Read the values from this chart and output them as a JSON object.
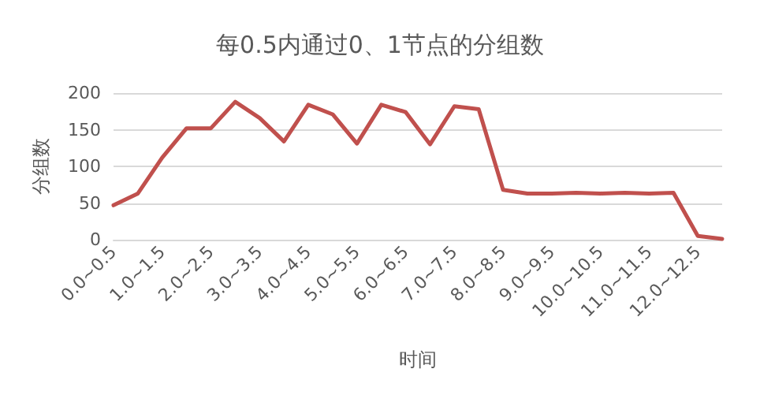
{
  "chart_data": {
    "type": "line",
    "title": "每0.5内通过0、1节点的分组数",
    "xlabel": "时间",
    "ylabel": "分组数",
    "categories": [
      "0.0~0.5",
      null,
      "1.0~1.5",
      null,
      "2.0~2.5",
      null,
      "3.0~3.5",
      null,
      "4.0~4.5",
      null,
      "5.0~5.5",
      null,
      "6.0~6.5",
      null,
      "7.0~7.5",
      null,
      "8.0~8.5",
      null,
      "9.0~9.5",
      null,
      "10.0~10.5",
      null,
      "11.0~11.5",
      null,
      "12.0~12.5",
      null
    ],
    "series": [
      {
        "color": "#c0504d",
        "values": [
          47,
          63,
          112,
          152,
          152,
          188,
          166,
          134,
          184,
          171,
          131,
          184,
          174,
          130,
          182,
          178,
          68,
          63,
          63,
          64,
          63,
          64,
          63,
          64,
          5,
          1
        ]
      }
    ],
    "ylim": [
      0,
      200
    ],
    "yticks": [
      0,
      50,
      100,
      150,
      200
    ],
    "grid": "y",
    "marker": "none",
    "line_style": "solid"
  }
}
